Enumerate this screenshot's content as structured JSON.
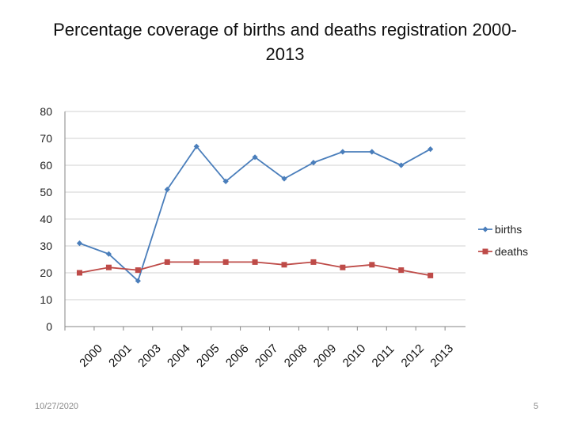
{
  "slide": {
    "title_line1": "Percentage coverage of births and deaths registration 2000-",
    "title_line2": "2013",
    "date": "10/27/2020",
    "page_number": "5"
  },
  "colors": {
    "births": "#4a7ebb",
    "deaths": "#be4b48",
    "grid": "#d0d0d0",
    "axis": "#868686"
  },
  "chart_data": {
    "type": "line",
    "title": "Percentage coverage of births and deaths registration 2000-2013",
    "xlabel": "",
    "ylabel": "",
    "categories": [
      "2000",
      "2001",
      "2003",
      "2004",
      "2005",
      "2006",
      "2007",
      "2008",
      "2009",
      "2010",
      "2011",
      "2012",
      "2013"
    ],
    "series": [
      {
        "name": "births",
        "marker": "diamond",
        "values": [
          31,
          27,
          17,
          51,
          67,
          54,
          63,
          55,
          61,
          65,
          65,
          60,
          66
        ]
      },
      {
        "name": "deaths",
        "marker": "square",
        "values": [
          20,
          22,
          21,
          24,
          24,
          24,
          24,
          23,
          24,
          22,
          23,
          21,
          19
        ]
      }
    ],
    "ylim": [
      0,
      80
    ],
    "yticks": [
      "0",
      "10",
      "20",
      "30",
      "40",
      "50",
      "60",
      "70",
      "80"
    ],
    "grid": true,
    "legend": "right"
  }
}
